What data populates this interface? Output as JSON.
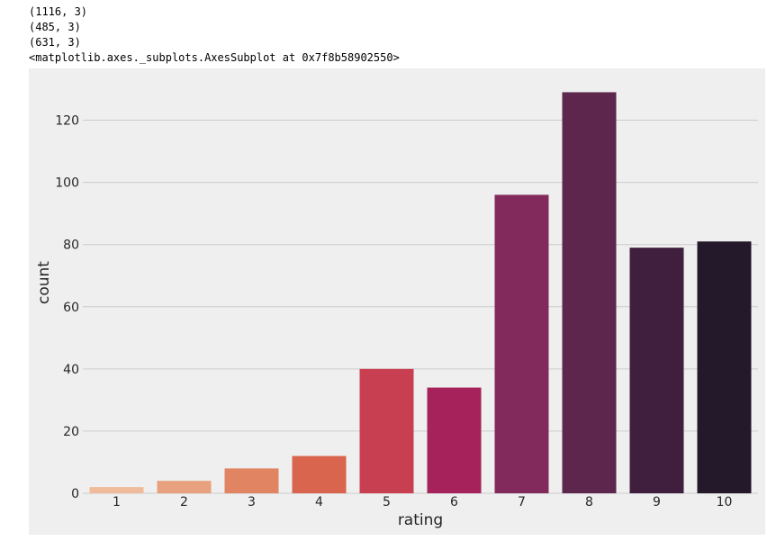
{
  "output_lines": [
    "(1116, 3)",
    "(485, 3)",
    "(631, 3)",
    "<matplotlib.axes._subplots.AxesSubplot at 0x7f8b58902550>"
  ],
  "chart_data": {
    "type": "bar",
    "categories": [
      "1",
      "2",
      "3",
      "4",
      "5",
      "6",
      "7",
      "8",
      "9",
      "10"
    ],
    "values": [
      2,
      4,
      8,
      12,
      40,
      34,
      96,
      129,
      79,
      81
    ],
    "colors": [
      "#efbb9a",
      "#e8a17f",
      "#e18462",
      "#d9654e",
      "#c73f51",
      "#a5225a",
      "#822a5b",
      "#5d264d",
      "#3f1f3d",
      "#24182b"
    ],
    "xlabel": "rating",
    "ylabel": "count",
    "yticks": [
      0,
      20,
      40,
      60,
      80,
      100,
      120
    ],
    "ylim": [
      0,
      135.5
    ],
    "grid": true,
    "background": "#efefef",
    "grid_color": "#cccccc"
  }
}
